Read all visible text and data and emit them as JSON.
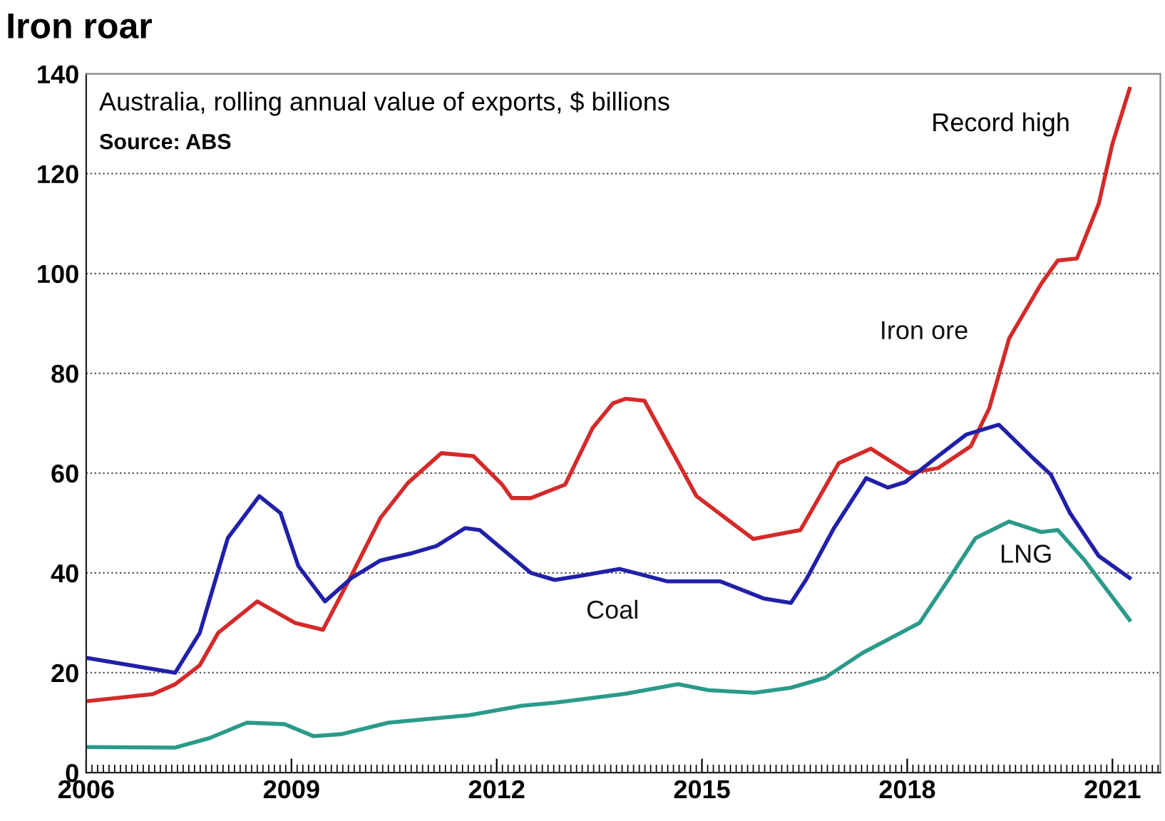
{
  "chart_data": {
    "type": "line",
    "title": "Iron roar",
    "subtitle": "Australia, rolling annual value of exports, $ billions",
    "annotations": [
      "Source: ABS",
      {
        "text": "Record high",
        "x": 2021.25,
        "y": 137
      }
    ],
    "xlim": [
      2006,
      2021.7
    ],
    "xticks": [
      2006,
      2009,
      2012,
      2015,
      2018,
      2021
    ],
    "ylim": [
      0,
      140
    ],
    "yticks": [
      0,
      20,
      40,
      60,
      80,
      100,
      120,
      140
    ],
    "grid": "y",
    "legend": false,
    "line_style": "solid",
    "series": [
      {
        "name": "Iron ore",
        "color": "#d42a2a",
        "x": [
          2006.0,
          2006.97,
          2007.3,
          2007.66,
          2007.93,
          2008.5,
          2009.05,
          2009.46,
          2009.88,
          2010.3,
          2010.7,
          2011.19,
          2011.66,
          2012.08,
          2012.22,
          2012.5,
          2013.0,
          2013.4,
          2013.7,
          2013.88,
          2014.16,
          2014.92,
          2015.75,
          2016.44,
          2017.0,
          2017.47,
          2018.03,
          2018.45,
          2018.93,
          2019.2,
          2019.49,
          2019.96,
          2020.2,
          2020.48,
          2020.8,
          2021.0,
          2021.25
        ],
        "values": [
          14.3,
          15.7,
          17.7,
          21.5,
          28,
          34.3,
          30,
          28.6,
          39.6,
          51,
          58,
          64,
          63.4,
          57.7,
          55,
          55,
          57.7,
          69,
          74,
          74.9,
          74.5,
          55.4,
          46.8,
          48.6,
          62,
          64.9,
          60,
          61,
          65.4,
          73,
          87,
          98,
          102.6,
          103,
          114,
          126,
          137
        ]
      },
      {
        "name": "Coal",
        "color": "#2020a8",
        "x": [
          2006.0,
          2007.3,
          2007.66,
          2008.07,
          2008.53,
          2008.84,
          2009.1,
          2009.49,
          2009.88,
          2010.3,
          2010.77,
          2011.12,
          2011.54,
          2011.75,
          2012.5,
          2012.85,
          2013.3,
          2013.8,
          2014.5,
          2015.27,
          2015.9,
          2016.3,
          2016.52,
          2016.93,
          2017.4,
          2017.72,
          2017.97,
          2018.45,
          2018.86,
          2019.34,
          2019.84,
          2020.1,
          2020.38,
          2020.8,
          2021.25
        ],
        "values": [
          23,
          20,
          28,
          47,
          55.4,
          52,
          41.4,
          34.3,
          39,
          42.5,
          44,
          45.4,
          49,
          48.6,
          40,
          38.6,
          39.6,
          40.8,
          38.3,
          38.3,
          34.9,
          34,
          38.6,
          49,
          59,
          57.1,
          58.2,
          63.4,
          67.7,
          69.7,
          63,
          59.7,
          52,
          43.4,
          39
        ]
      },
      {
        "name": "LNG",
        "color": "#2a9a8a",
        "x": [
          2006.0,
          2007.3,
          2007.8,
          2008.35,
          2008.9,
          2009.32,
          2009.73,
          2010.42,
          2011.6,
          2012.37,
          2012.85,
          2013.88,
          2014.65,
          2015.1,
          2015.77,
          2016.3,
          2016.8,
          2017.35,
          2018.18,
          2018.6,
          2019.0,
          2019.49,
          2019.96,
          2020.2,
          2020.59,
          2021.25
        ],
        "values": [
          5.1,
          5,
          6.9,
          10,
          9.7,
          7.3,
          7.7,
          10,
          11.5,
          13.4,
          14,
          15.8,
          17.7,
          16.5,
          16,
          17,
          19,
          24,
          30,
          38.6,
          47,
          50.3,
          48.2,
          48.6,
          42.6,
          30.6
        ]
      }
    ]
  }
}
